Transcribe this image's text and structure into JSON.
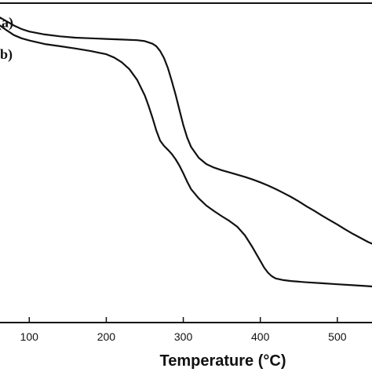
{
  "chart_data": {
    "type": "line",
    "title": "",
    "xlabel": "Temperature (°C)",
    "ylabel": "",
    "xlim": [
      62,
      545
    ],
    "ylim": [
      0,
      100
    ],
    "x_ticks": [
      100,
      200,
      300,
      400,
      500
    ],
    "grid": false,
    "series": [
      {
        "name": "(a)",
        "label_at": [
          64,
          94
        ],
        "x": [
          62,
          70,
          80,
          90,
          100,
          120,
          140,
          160,
          180,
          200,
          220,
          240,
          250,
          260,
          265,
          270,
          275,
          280,
          285,
          290,
          295,
          300,
          305,
          310,
          320,
          330,
          340,
          350,
          360,
          370,
          380,
          390,
          400,
          410,
          420,
          430,
          440,
          450,
          460,
          470,
          480,
          490,
          500,
          510,
          520,
          530,
          540,
          545
        ],
        "y": [
          95.5,
          94.4,
          93.0,
          91.9,
          91.1,
          90.2,
          89.6,
          89.2,
          89.0,
          88.8,
          88.6,
          88.4,
          88.1,
          87.3,
          86.5,
          85.0,
          82.8,
          79.7,
          75.7,
          71.3,
          66.5,
          61.8,
          57.9,
          55.0,
          51.6,
          49.6,
          48.5,
          47.7,
          47.0,
          46.3,
          45.6,
          44.8,
          43.9,
          42.9,
          41.8,
          40.6,
          39.3,
          37.9,
          36.4,
          35.0,
          33.5,
          32.1,
          30.7,
          29.2,
          27.8,
          26.5,
          25.2,
          24.7
        ]
      },
      {
        "name": "(b)",
        "label_at": [
          62,
          84
        ],
        "x": [
          62,
          70,
          80,
          90,
          100,
          120,
          140,
          160,
          180,
          200,
          210,
          220,
          230,
          240,
          250,
          255,
          260,
          265,
          270,
          275,
          280,
          285,
          290,
          295,
          300,
          305,
          310,
          320,
          330,
          340,
          350,
          360,
          370,
          380,
          390,
          400,
          405,
          410,
          415,
          420,
          430,
          440,
          450,
          460,
          480,
          500,
          520,
          540,
          545
        ],
        "y": [
          93.0,
          91.6,
          90.0,
          89.0,
          88.3,
          87.2,
          86.5,
          85.8,
          85.0,
          84.0,
          83.0,
          81.5,
          79.3,
          76.0,
          71.1,
          67.8,
          64.1,
          60.1,
          56.9,
          55.3,
          54.1,
          52.8,
          51.1,
          49.1,
          46.7,
          44.1,
          41.8,
          38.9,
          36.6,
          34.9,
          33.3,
          31.8,
          30.0,
          27.3,
          23.5,
          19.3,
          17.2,
          15.6,
          14.5,
          13.8,
          13.3,
          13.0,
          12.8,
          12.6,
          12.3,
          12.0,
          11.7,
          11.4,
          11.3
        ]
      }
    ]
  }
}
